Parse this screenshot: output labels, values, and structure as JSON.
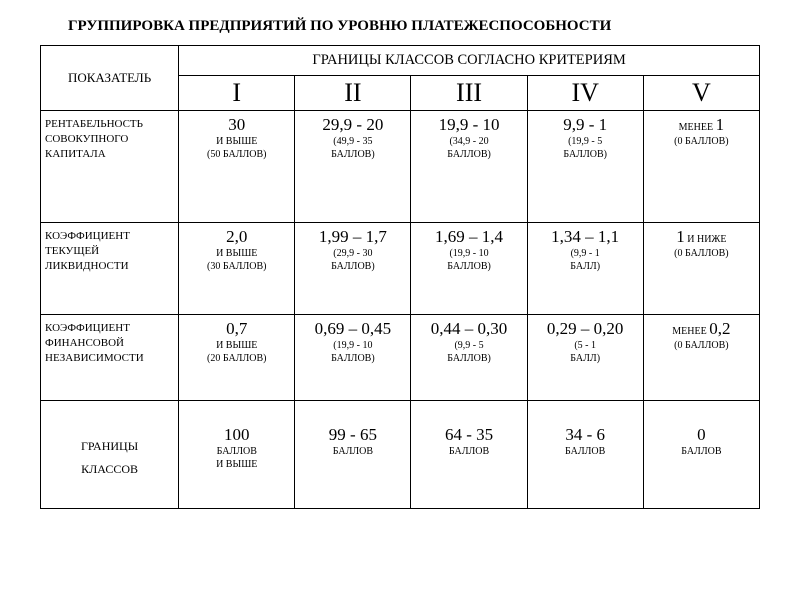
{
  "title": "ГРУППИРОВКА  ПРЕДПРИЯТИЙ  ПО  УРОВНЮ  ПЛАТЕЖЕСПОСОБНОСТИ",
  "header": {
    "indicator": "ПОКАЗАТЕЛЬ",
    "classes_title": "ГРАНИЦЫ КЛАССОВ СОГЛАСНО КРИТЕРИЯМ",
    "roman": [
      "I",
      "II",
      "III",
      "IV",
      "V"
    ]
  },
  "rows": [
    {
      "label": "РЕНТАБЕЛЬНОСТЬ СОВОКУПНОГО КАПИТАЛА",
      "cells": [
        {
          "main": "30",
          "sub1": "И ВЫШЕ",
          "sub2": "(50 БАЛЛОВ)"
        },
        {
          "main": "29,9 - 20",
          "sub1": "(49,9 - 35",
          "sub2": "БАЛЛОВ)"
        },
        {
          "main": "19,9 - 10",
          "sub1": "(34,9 - 20",
          "sub2": "БАЛЛОВ)"
        },
        {
          "main": "9,9 - 1",
          "sub1": "(19,9 - 5",
          "sub2": "БАЛЛОВ)"
        },
        {
          "mix_pre": "МЕНЕЕ ",
          "mix_big": "1",
          "sub1": "(0 БАЛЛОВ)",
          "sub2": ""
        }
      ]
    },
    {
      "label": "КОЭФФИЦИЕНТ ТЕКУЩЕЙ\nЛИКВИДНОСТИ",
      "cells": [
        {
          "main": "2,0",
          "sub1": "И ВЫШЕ",
          "sub2": "(30 БАЛЛОВ)"
        },
        {
          "main": "1,99 – 1,7",
          "sub1": "(29,9 - 30",
          "sub2": "БАЛЛОВ)"
        },
        {
          "main": "1,69 – 1,4",
          "sub1": "(19,9 - 10",
          "sub2": "БАЛЛОВ)"
        },
        {
          "main": "1,34 – 1,1",
          "sub1": "(9,9 - 1",
          "sub2": "БАЛЛ)"
        },
        {
          "mix_big": "1",
          "mix_post": " И НИЖЕ",
          "sub1": "(0 БАЛЛОВ)",
          "sub2": ""
        }
      ]
    },
    {
      "label": "КОЭФФИЦИЕНТ ФИНАНСОВОЙ НЕЗАВИСИМОСТИ",
      "cells": [
        {
          "main": "0,7",
          "sub1": "И ВЫШЕ",
          "sub2": "(20 БАЛЛОВ)"
        },
        {
          "main": "0,69 – 0,45",
          "sub1": "(19,9 - 10",
          "sub2": "БАЛЛОВ)"
        },
        {
          "main": "0,44 – 0,30",
          "sub1": "(9,9 - 5",
          "sub2": "БАЛЛОВ)"
        },
        {
          "main": "0,29 – 0,20",
          "sub1": "(5 - 1",
          "sub2": "БАЛЛ)"
        },
        {
          "mix_pre": "МЕНЕЕ ",
          "mix_big": "0,2",
          "sub1": "(0 БАЛЛОВ)",
          "sub2": ""
        }
      ]
    },
    {
      "label_lines": [
        "ГРАНИЦЫ",
        "КЛАССОВ"
      ],
      "cells": [
        {
          "main": "100",
          "sub1": "БАЛЛОВ",
          "sub2": "И ВЫШЕ"
        },
        {
          "main": "99 - 65",
          "sub1": "БАЛЛОВ",
          "sub2": ""
        },
        {
          "main": "64 - 35",
          "sub1": "БАЛЛОВ",
          "sub2": ""
        },
        {
          "main": "34 - 6",
          "sub1": "БАЛЛОВ",
          "sub2": ""
        },
        {
          "main": "0",
          "sub1": "БАЛЛОВ",
          "sub2": ""
        }
      ]
    }
  ]
}
